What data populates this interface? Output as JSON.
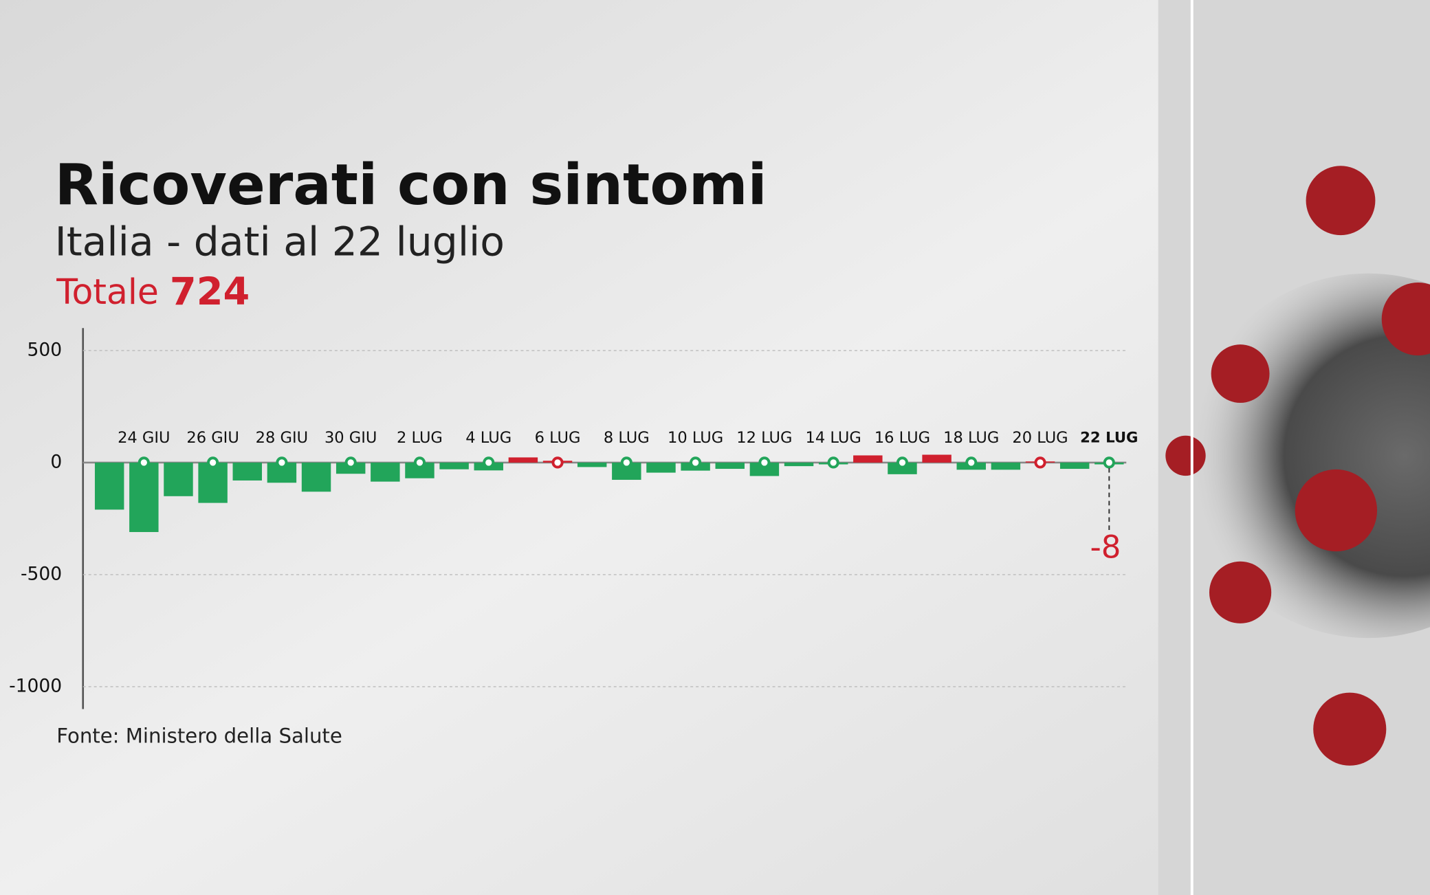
{
  "title": "Ricoverati con sintomi",
  "subtitle": "Italia - dati al 22 luglio",
  "total_label": "Totale",
  "total": 724,
  "source": "Fonte: Ministero della Salute",
  "chart_data": {
    "type": "bar",
    "categories": [
      null,
      "24 GIU",
      null,
      "26 GIU",
      null,
      "28 GIU",
      null,
      "30 GIU",
      null,
      "2 LUG",
      null,
      "4 LUG",
      null,
      "6 LUG",
      null,
      "8 LUG",
      null,
      "10 LUG",
      null,
      "12 LUG",
      null,
      "14 LUG",
      null,
      "16 LUG",
      null,
      "18 LUG",
      null,
      "20 LUG",
      null,
      "22 LUG"
    ],
    "values": [
      -210,
      -310,
      -150,
      -180,
      -80,
      -90,
      -130,
      -50,
      -85,
      -70,
      -30,
      -35,
      23,
      8,
      -20,
      -77,
      -45,
      -36,
      -28,
      -60,
      -16,
      -8,
      32,
      -52,
      35,
      -32,
      -32,
      5,
      -28,
      -8
    ],
    "positive_color": "#d0202e",
    "negative_color": "#22a55a",
    "ylim": [
      -1100,
      600
    ],
    "yticks": [
      500,
      0,
      -500,
      -1000
    ],
    "grid": true
  }
}
